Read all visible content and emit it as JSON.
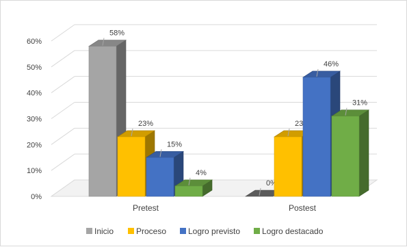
{
  "chart_data": {
    "type": "bar",
    "title": "",
    "xlabel": "",
    "ylabel": "",
    "categories": [
      "Pretest",
      "Postest"
    ],
    "ylim": [
      0,
      60
    ],
    "yticks": [
      0,
      10,
      20,
      30,
      40,
      50,
      60
    ],
    "ytick_labels": [
      "0%",
      "10%",
      "20%",
      "30%",
      "40%",
      "50%",
      "60%"
    ],
    "legend_position": "bottom",
    "grid": true,
    "series": [
      {
        "name": "Inicio",
        "color": "#A5A5A5",
        "values": [
          58,
          0
        ],
        "labels": [
          "58%",
          "0%"
        ]
      },
      {
        "name": "Proceso",
        "color": "#FFC000",
        "values": [
          23,
          23
        ],
        "labels": [
          "23%",
          "23%"
        ]
      },
      {
        "name": "Logro previsto",
        "color": "#4472C4",
        "values": [
          15,
          46
        ],
        "labels": [
          "15%",
          "46%"
        ]
      },
      {
        "name": "Logro destacado",
        "color": "#70AD47",
        "values": [
          4,
          31
        ],
        "labels": [
          "4%",
          "31%"
        ]
      }
    ]
  }
}
